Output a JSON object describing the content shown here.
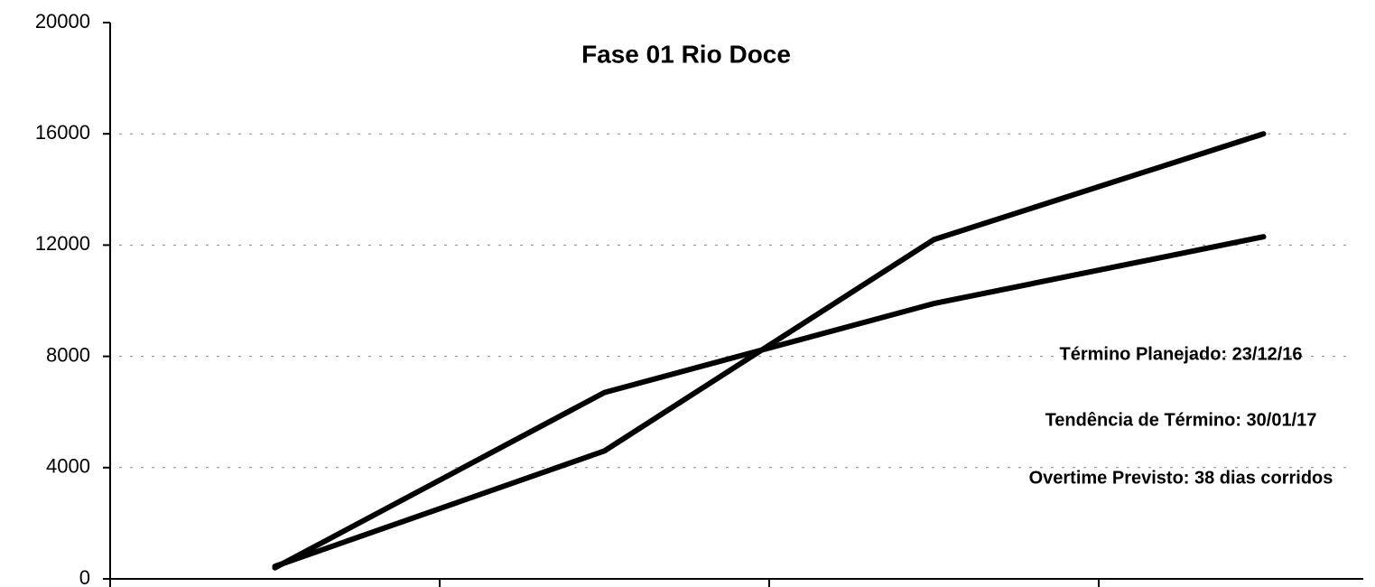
{
  "chart_data": {
    "type": "line",
    "title": "Fase 01 Rio Doce",
    "categories": [
      null,
      null,
      null,
      null
    ],
    "series": [
      {
        "color": "#000000",
        "values": [
          400,
          6700,
          9900,
          12300
        ]
      },
      {
        "color": "#000000",
        "values": [
          450,
          4600,
          12200,
          16000
        ]
      }
    ],
    "ylim": [
      0,
      20000
    ],
    "yticks": [
      0,
      4000,
      8000,
      12000,
      16000,
      20000
    ],
    "grid": true,
    "annotations": [
      "Término Planejado: 23/12/16",
      "Tendência de Término: 30/01/17",
      "Overtime Previsto: 38 dias corridos"
    ]
  }
}
